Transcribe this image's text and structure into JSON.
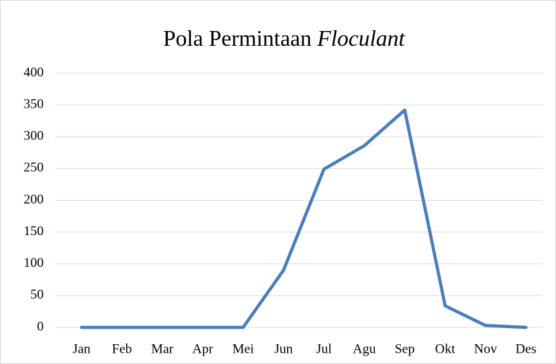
{
  "chart_data": {
    "type": "line",
    "title": [
      "Pola Permintaan",
      "Floculant"
    ],
    "categories": [
      "Jan",
      "Feb",
      "Mar",
      "Apr",
      "Mei",
      "Jun",
      "Jul",
      "Agu",
      "Sep",
      "Okt",
      "Nov",
      "Des"
    ],
    "series": [
      {
        "color": "#4a7ebb",
        "values": [
          0,
          0,
          0,
          0,
          0,
          90,
          249,
          286,
          342,
          34,
          3,
          0
        ]
      }
    ],
    "ylim": [
      0,
      400
    ],
    "yticks": [
      0,
      50,
      100,
      150,
      200,
      250,
      300,
      350,
      400
    ],
    "grid": true
  }
}
